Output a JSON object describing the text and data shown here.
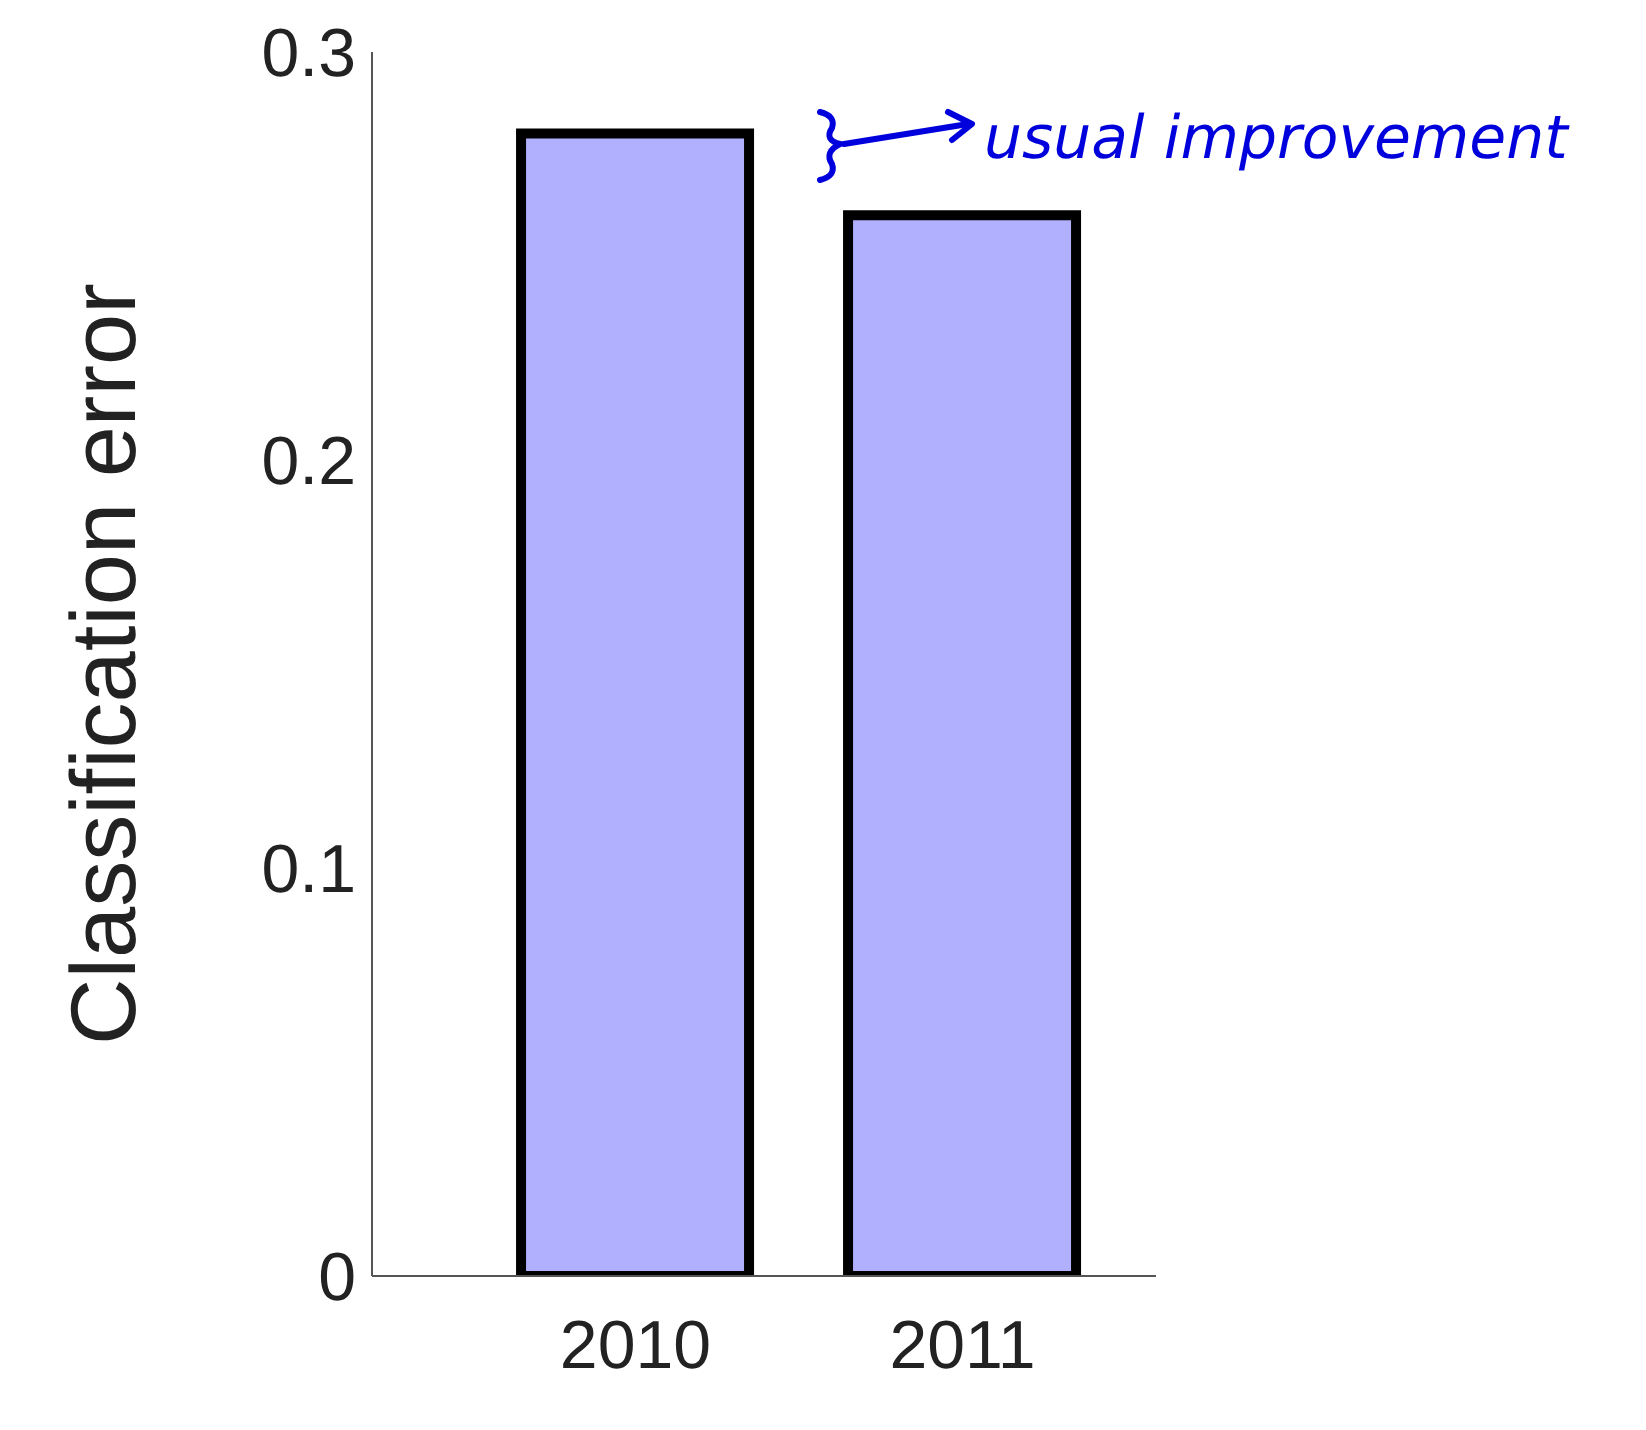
{
  "chart_data": {
    "type": "bar",
    "ylabel": "Classification error",
    "categories": [
      "2010",
      "2011"
    ],
    "values": [
      0.28,
      0.26
    ],
    "color": "#b0b0ff",
    "ylim": [
      0,
      0.3
    ],
    "yticks": [
      0,
      0.1,
      0.2,
      0.3
    ],
    "grid": false,
    "legend": false,
    "annotations": [
      "usual improvement"
    ]
  }
}
